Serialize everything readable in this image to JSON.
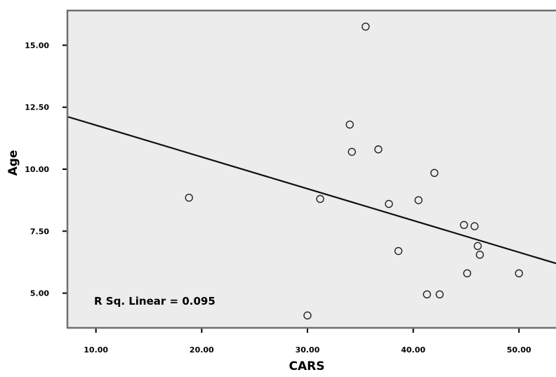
{
  "chart_data": {
    "type": "scatter",
    "xlabel": "CARS",
    "ylabel": "Age",
    "xlim": [
      7.3,
      53.5
    ],
    "ylim": [
      3.6,
      16.4
    ],
    "x_ticks": [
      "10.00",
      "20.00",
      "30.00",
      "40.00",
      "50.00"
    ],
    "y_ticks": [
      "5.00",
      "7.50",
      "10.00",
      "12.50",
      "15.00"
    ],
    "grid": false,
    "points": [
      {
        "x": 18.8,
        "y": 8.85
      },
      {
        "x": 30.0,
        "y": 4.1
      },
      {
        "x": 31.2,
        "y": 8.8
      },
      {
        "x": 34.0,
        "y": 11.8
      },
      {
        "x": 34.2,
        "y": 10.7
      },
      {
        "x": 35.5,
        "y": 15.75
      },
      {
        "x": 36.7,
        "y": 10.8
      },
      {
        "x": 37.7,
        "y": 8.6
      },
      {
        "x": 38.6,
        "y": 6.7
      },
      {
        "x": 40.5,
        "y": 8.75
      },
      {
        "x": 41.3,
        "y": 4.95
      },
      {
        "x": 42.0,
        "y": 9.85
      },
      {
        "x": 42.5,
        "y": 4.95
      },
      {
        "x": 44.8,
        "y": 7.75
      },
      {
        "x": 45.1,
        "y": 5.8
      },
      {
        "x": 45.8,
        "y": 7.7
      },
      {
        "x": 46.1,
        "y": 6.9
      },
      {
        "x": 46.3,
        "y": 6.55
      },
      {
        "x": 50.0,
        "y": 5.8
      }
    ],
    "fit_line": {
      "x": [
        7.3,
        53.5
      ],
      "y": [
        12.12,
        6.2
      ]
    },
    "annotation": "R Sq. Linear = 0.095",
    "colors": {
      "plot_bg": "#ececec",
      "frame": "#6f6f6f",
      "marker": "#222222",
      "line": "#111111"
    }
  }
}
